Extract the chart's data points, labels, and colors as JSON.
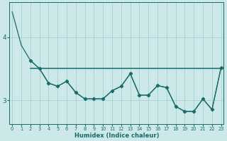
{
  "xlabel": "Humidex (Indice chaleur)",
  "bg_color": "#cce8e8",
  "grid_color": "#aad4d4",
  "line_color": "#1a6b6b",
  "xlim": [
    -0.3,
    23.3
  ],
  "ylim": [
    2.62,
    4.55
  ],
  "yticks": [
    3,
    4
  ],
  "xticks": [
    0,
    1,
    2,
    3,
    4,
    5,
    6,
    7,
    8,
    9,
    10,
    11,
    12,
    13,
    14,
    15,
    16,
    17,
    18,
    19,
    20,
    21,
    22,
    23
  ],
  "line_steep_x": [
    0,
    1,
    2,
    3,
    4,
    5,
    6,
    7,
    8,
    9,
    10,
    11,
    12,
    13,
    14,
    15,
    16,
    17,
    18,
    19,
    20,
    21,
    22,
    23
  ],
  "line_steep_y": [
    4.4,
    3.87,
    3.63,
    3.5,
    3.27,
    3.22,
    3.3,
    3.12,
    3.02,
    3.02,
    3.02,
    3.15,
    3.22,
    3.42,
    3.08,
    3.08,
    3.23,
    3.2,
    2.9,
    2.82,
    2.82,
    3.02,
    2.85,
    3.52
  ],
  "line_markers_x": [
    2,
    3,
    4,
    5,
    6,
    7,
    8,
    9,
    10,
    11,
    12,
    13,
    14,
    15,
    16,
    17,
    18,
    19,
    20,
    21,
    22,
    23
  ],
  "line_markers_y": [
    3.63,
    3.5,
    3.27,
    3.22,
    3.3,
    3.12,
    3.02,
    3.02,
    3.02,
    3.15,
    3.22,
    3.42,
    3.08,
    3.08,
    3.23,
    3.2,
    2.9,
    2.82,
    2.82,
    3.02,
    2.85,
    3.52
  ],
  "hline_y": 3.5,
  "hline_x_start": 2,
  "hline_x_end": 23
}
